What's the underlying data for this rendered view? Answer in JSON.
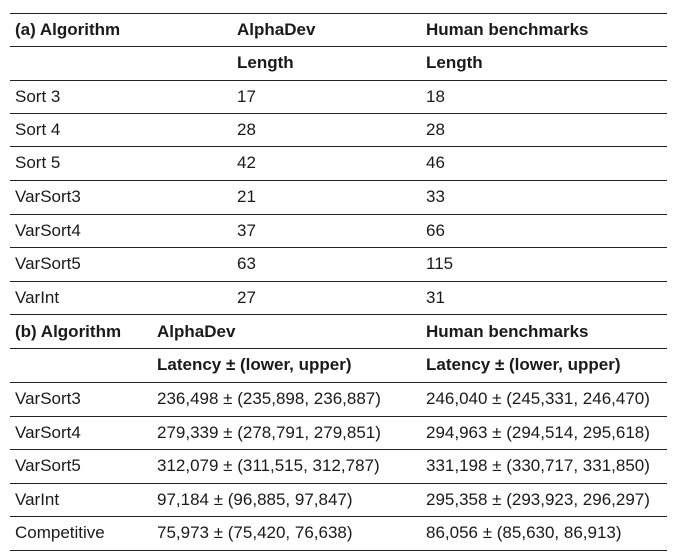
{
  "part_a": {
    "header": {
      "col1": "(a) Algorithm",
      "col2": "AlphaDev",
      "col3": "Human benchmarks"
    },
    "subheader": {
      "col2": "Length",
      "col3": "Length"
    },
    "rows": [
      {
        "algorithm": "Sort 3",
        "alphadev": "17",
        "human": "18"
      },
      {
        "algorithm": "Sort 4",
        "alphadev": "28",
        "human": "28"
      },
      {
        "algorithm": "Sort 5",
        "alphadev": "42",
        "human": "46"
      },
      {
        "algorithm": "VarSort3",
        "alphadev": "21",
        "human": "33"
      },
      {
        "algorithm": "VarSort4",
        "alphadev": "37",
        "human": "66"
      },
      {
        "algorithm": "VarSort5",
        "alphadev": "63",
        "human": "115"
      },
      {
        "algorithm": "VarInt",
        "alphadev": "27",
        "human": "31"
      }
    ]
  },
  "part_b": {
    "header": {
      "col1": "(b) Algorithm",
      "col2": "AlphaDev",
      "col3": "Human benchmarks"
    },
    "subheader": {
      "col2": "Latency ± (lower, upper)",
      "col3": "Latency ± (lower, upper)"
    },
    "rows": [
      {
        "algorithm": "VarSort3",
        "alphadev": "236,498 ± (235,898, 236,887)",
        "human": "246,040 ± (245,331, 246,470)"
      },
      {
        "algorithm": "VarSort4",
        "alphadev": "279,339 ± (278,791, 279,851)",
        "human": "294,963 ± (294,514, 295,618)"
      },
      {
        "algorithm": "VarSort5",
        "alphadev": "312,079 ± (311,515, 312,787)",
        "human": "331,198 ± (330,717, 331,850)"
      },
      {
        "algorithm": "VarInt",
        "alphadev": "97,184 ± (96,885, 97,847)",
        "human": "295,358 ± (293,923, 296,297)"
      },
      {
        "algorithm": "Competitive",
        "alphadev": "75,973 ± (75,420, 76,638)",
        "human": "86,056 ± (85,630, 86,913)"
      }
    ]
  }
}
